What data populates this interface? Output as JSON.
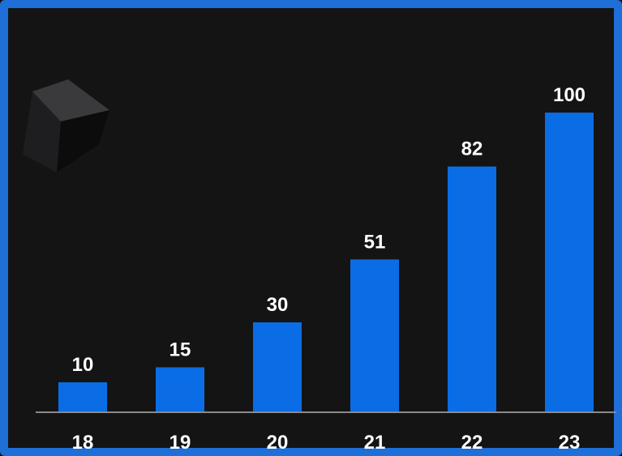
{
  "chart_data": {
    "type": "bar",
    "categories": [
      "18",
      "19",
      "20",
      "21",
      "22",
      "23"
    ],
    "values": [
      10,
      15,
      30,
      51,
      82,
      100
    ],
    "title": "",
    "xlabel": "",
    "ylabel": "",
    "ylim": [
      0,
      100
    ],
    "grid": false,
    "legend": "none",
    "data_labels": true
  },
  "colors": {
    "bar": "#0a6de5",
    "frame": "#1f6fd8",
    "background": "#141414",
    "axis": "#8a8a8a",
    "text": "#ffffff"
  },
  "decoration": {
    "icon": "cube-icon"
  }
}
